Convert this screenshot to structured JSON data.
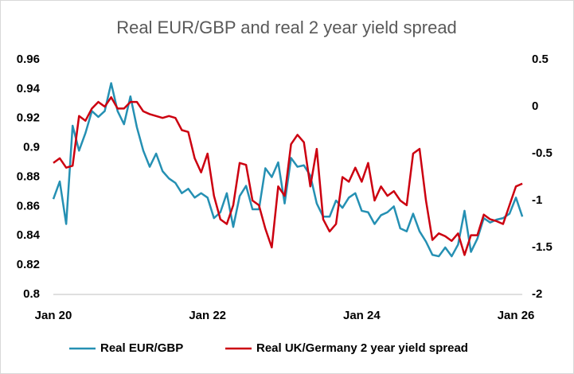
{
  "chart_data": {
    "type": "line",
    "title": "Real EUR/GBP and real 2 year yield spread",
    "categories": [
      "Jan 20",
      null,
      null,
      null,
      null,
      null,
      null,
      null,
      null,
      null,
      null,
      null,
      null,
      null,
      null,
      null,
      null,
      null,
      null,
      null,
      null,
      null,
      null,
      null,
      "Jan 22",
      null,
      null,
      null,
      null,
      null,
      null,
      null,
      null,
      null,
      null,
      null,
      null,
      null,
      null,
      null,
      null,
      null,
      null,
      null,
      null,
      null,
      null,
      null,
      "Jan 24",
      null,
      null,
      null,
      null,
      null,
      null,
      null,
      null,
      null,
      null,
      null,
      null,
      null,
      null,
      null,
      null,
      null,
      null,
      null,
      null,
      null,
      null,
      null,
      "Jan 26",
      null
    ],
    "series": [
      {
        "name": "Real EUR/GBP",
        "color": "#2590b3",
        "axis": "y",
        "values": [
          0.865,
          0.877,
          0.848,
          0.915,
          0.898,
          0.91,
          0.925,
          0.921,
          0.925,
          0.944,
          0.925,
          0.916,
          0.935,
          0.914,
          0.898,
          0.887,
          0.896,
          0.884,
          0.879,
          0.876,
          0.869,
          0.872,
          0.866,
          0.869,
          0.866,
          0.852,
          0.856,
          0.869,
          0.846,
          0.867,
          0.874,
          0.858,
          0.858,
          0.886,
          0.88,
          0.89,
          0.862,
          0.893,
          0.887,
          0.888,
          0.881,
          0.862,
          0.853,
          0.853,
          0.864,
          0.859,
          0.866,
          0.869,
          0.857,
          0.856,
          0.848,
          0.854,
          0.856,
          0.86,
          0.845,
          0.843,
          0.855,
          0.843,
          0.836,
          0.827,
          0.826,
          0.832,
          0.826,
          0.834,
          0.857,
          0.829,
          0.838,
          0.852,
          0.849,
          0.851,
          0.852,
          0.855,
          0.866,
          0.853
        ]
      },
      {
        "name": "Real UK/Germany 2 year yield spread",
        "color": "#cc0010",
        "axis": "y2",
        "values": [
          -0.6,
          -0.55,
          -0.65,
          -0.63,
          -0.1,
          -0.15,
          -0.02,
          0.05,
          0.0,
          0.1,
          -0.02,
          -0.02,
          0.05,
          0.05,
          -0.05,
          -0.08,
          -0.1,
          -0.12,
          -0.1,
          -0.12,
          -0.25,
          -0.27,
          -0.55,
          -0.7,
          -0.5,
          -0.95,
          -1.2,
          -1.25,
          -1.05,
          -0.6,
          -0.62,
          -1.0,
          -1.05,
          -1.3,
          -1.5,
          -0.85,
          -0.95,
          -0.4,
          -0.3,
          -0.38,
          -0.85,
          -0.45,
          -1.2,
          -1.33,
          -1.25,
          -0.75,
          -0.8,
          -0.65,
          -0.8,
          -0.6,
          -1.0,
          -0.85,
          -0.95,
          -0.9,
          -1.0,
          -1.05,
          -0.5,
          -0.45,
          -1.0,
          -1.42,
          -1.35,
          -1.38,
          -1.43,
          -1.35,
          -1.58,
          -1.37,
          -1.37,
          -1.15,
          -1.2,
          -1.22,
          -1.25,
          -1.05,
          -0.85,
          -0.82
        ]
      }
    ],
    "ylim": [
      0.8,
      0.96
    ],
    "yticks": [
      0.8,
      0.82,
      0.84,
      0.86,
      0.88,
      0.9,
      0.92,
      0.94,
      0.96
    ],
    "y2lim": [
      -2,
      0.5
    ],
    "y2ticks": [
      -2,
      -1.5,
      -1,
      -0.5,
      0,
      0.5
    ],
    "grid": false,
    "legend": "bottom"
  }
}
